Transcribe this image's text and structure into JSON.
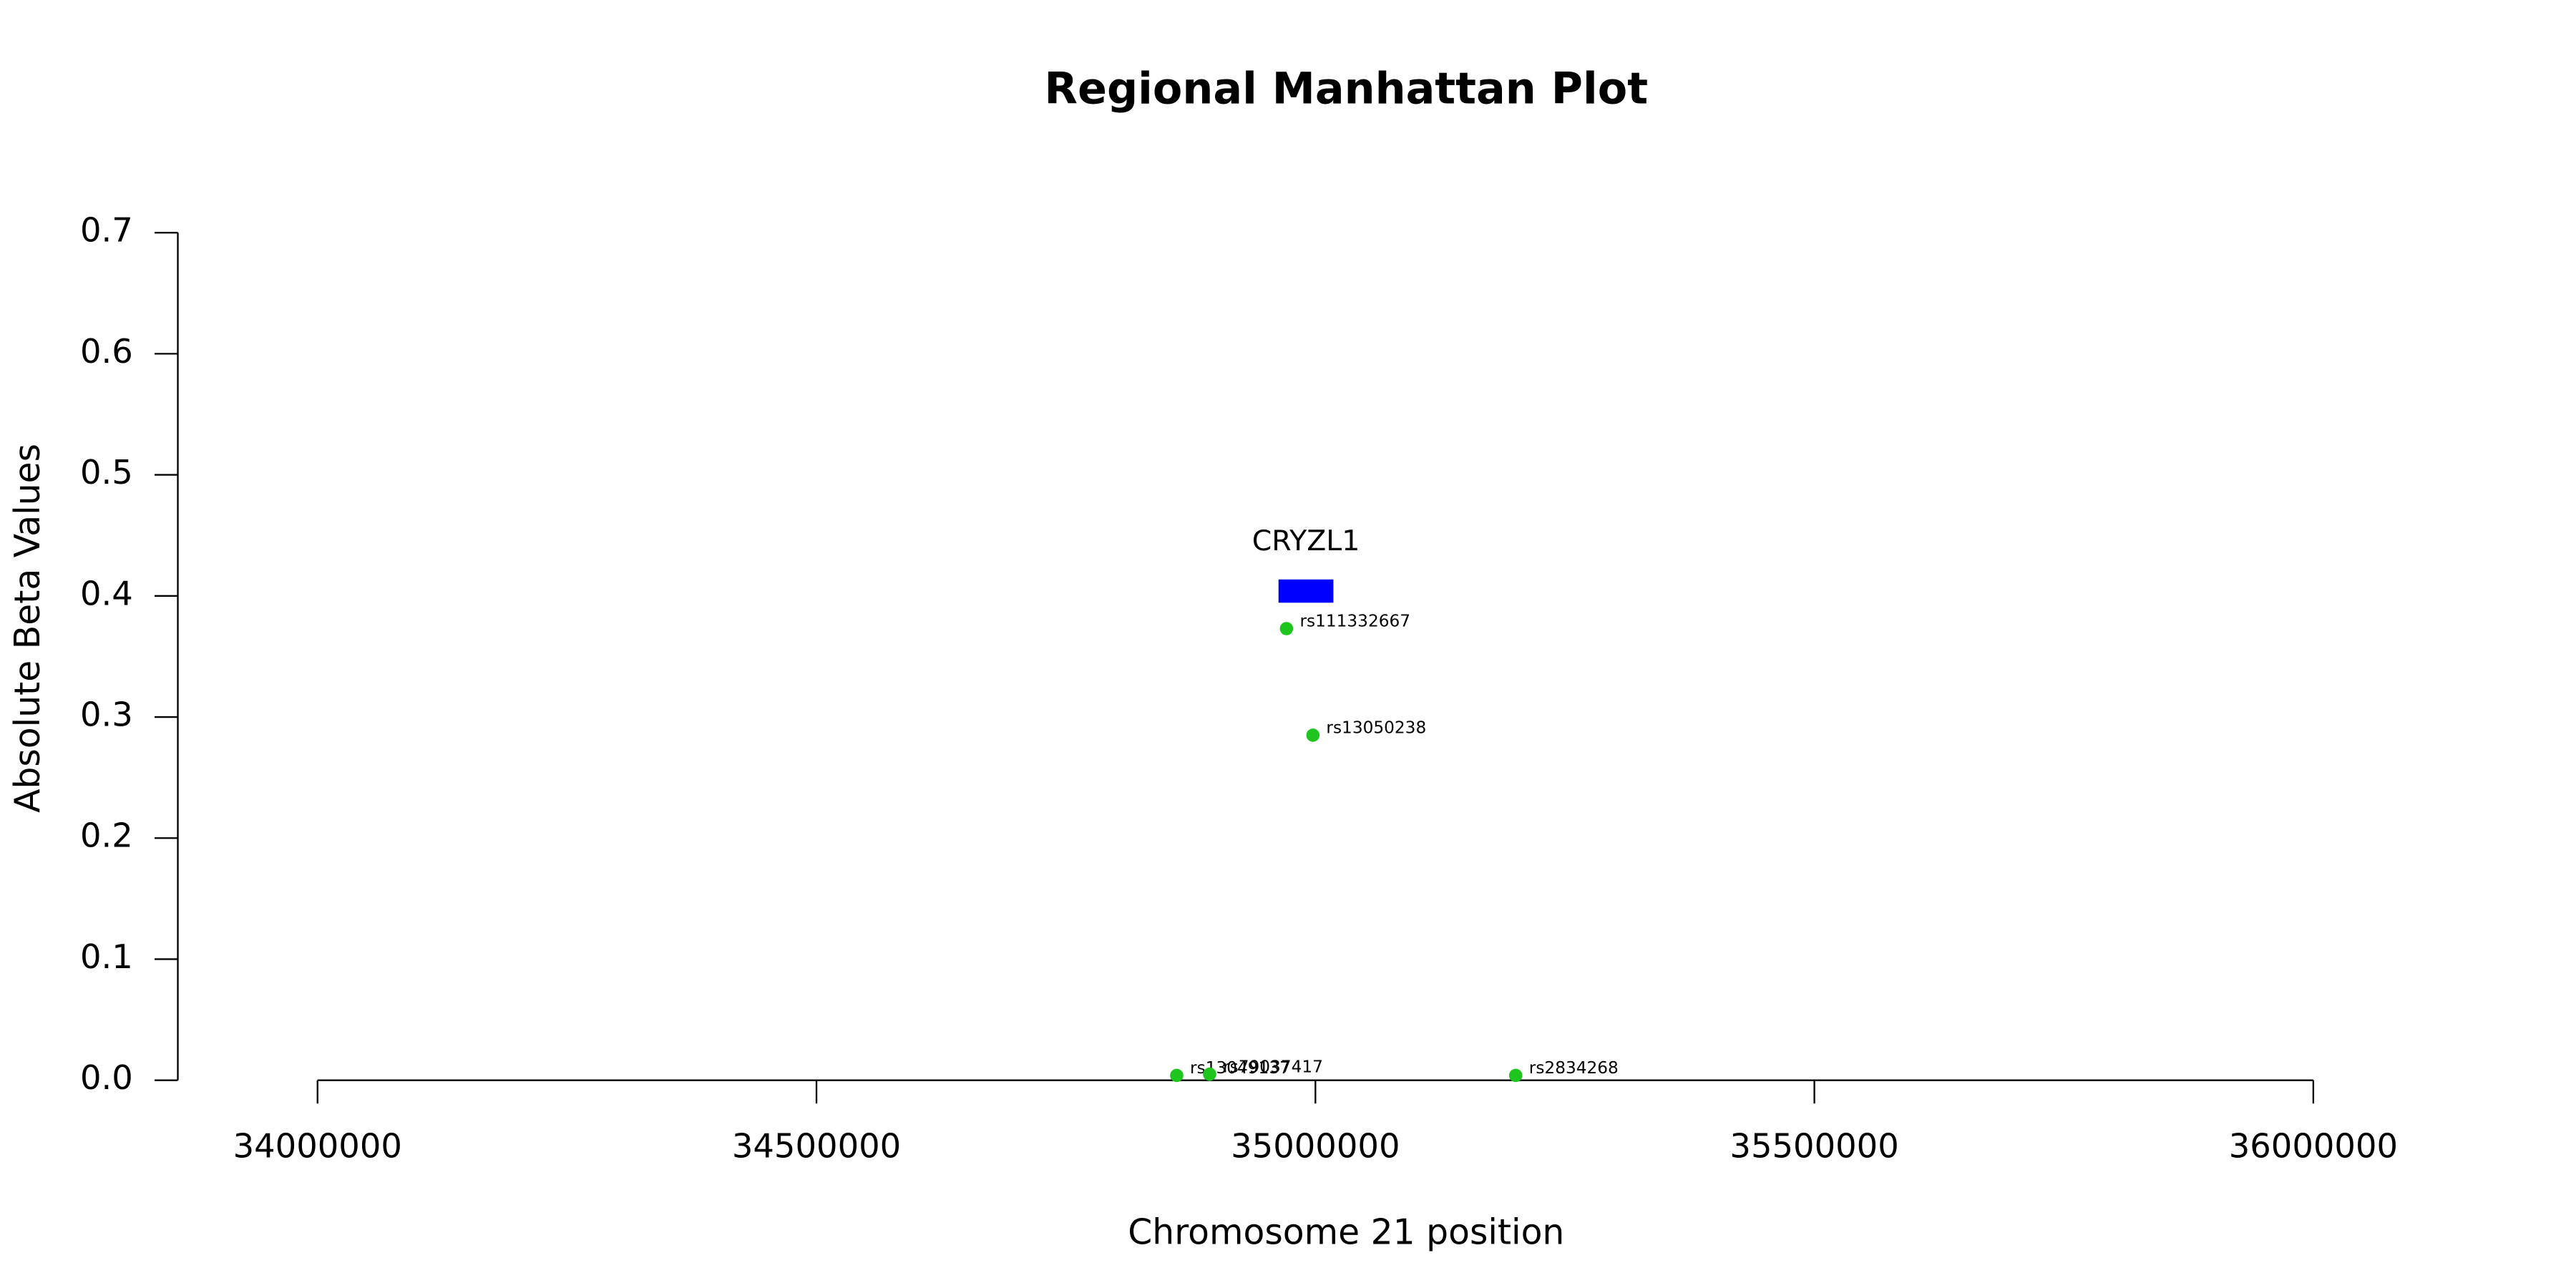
{
  "chart_data": {
    "type": "scatter",
    "title": "Regional Manhattan Plot",
    "x_label": "Chromosome 21 position",
    "y_label": "Absolute Beta Values",
    "xlim": [
      33860000,
      36140000
    ],
    "xticks": [
      34000000,
      34500000,
      35000000,
      35500000,
      36000000
    ],
    "ylim": [
      0,
      0.7
    ],
    "yticks": [
      {
        "value": 0,
        "label": "0.0"
      },
      0.1,
      0.2,
      0.3,
      0.4,
      0.5,
      0.6,
      0.7
    ],
    "points": {
      "color": "#1ec51e",
      "labels": [
        "rs111332667",
        "rs13050238",
        "rs13049137",
        "rs79037417",
        "rs2834268"
      ],
      "x": [
        34971000,
        34997500,
        34861000,
        34894000,
        35200700
      ],
      "y": [
        0.373,
        0.285,
        0.004,
        0.005,
        0.004
      ]
    },
    "gene": {
      "name": "CRYZL1",
      "start": 34963000,
      "end": 35018000,
      "y": 0.404,
      "color": "#0000ff"
    }
  }
}
